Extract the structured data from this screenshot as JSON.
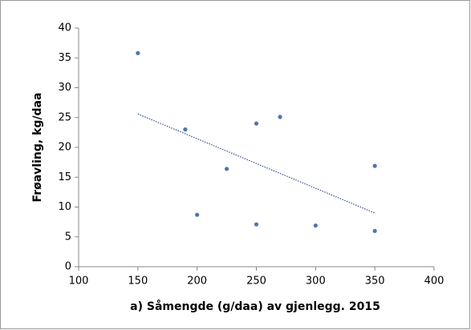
{
  "chart_data": {
    "type": "scatter",
    "x_label": "a) Såmengde (g/daa) av gjenlegg. 2015",
    "y_label": "Frøavling, kg/daa",
    "series": [
      {
        "color": "#4f74b0",
        "x": [
          150,
          190,
          200,
          225,
          250,
          250,
          270,
          300,
          350,
          350
        ],
        "values": [
          35.8,
          23,
          8.7,
          16.4,
          24,
          7.1,
          25.1,
          6.9,
          16.9,
          6
        ]
      }
    ],
    "trendline": {
      "color": "#2f4f8f",
      "x": [
        150,
        350
      ],
      "values": [
        25.6,
        9
      ]
    },
    "xlim": [
      100,
      400
    ],
    "xticks": [
      100,
      150,
      200,
      250,
      300,
      350,
      400
    ],
    "ylim": [
      0,
      40
    ],
    "yticks": [
      0,
      5,
      10,
      15,
      20,
      25,
      30,
      35,
      40
    ]
  }
}
